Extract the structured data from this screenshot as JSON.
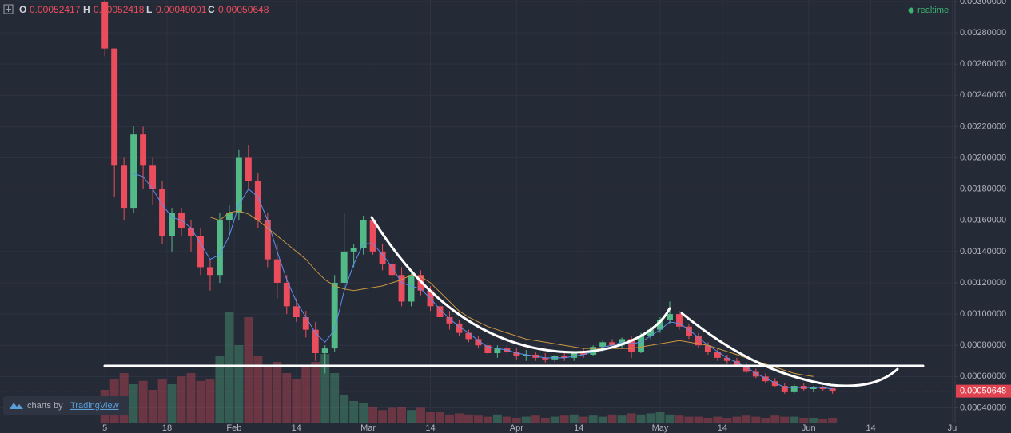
{
  "chart_data": {
    "type": "candlestick",
    "ohlc_labels": [
      "O",
      "H",
      "L",
      "C"
    ],
    "status": "realtime",
    "attribution": {
      "prefix": "charts by",
      "brand": "TradingView"
    },
    "up_color": "#53b987",
    "down_color": "#eb4d5c",
    "grid": true,
    "xlim": [
      -21.9,
      177.6
    ],
    "xticks": [
      {
        "value": 0,
        "label": "5"
      },
      {
        "value": 13,
        "label": "18"
      },
      {
        "value": 27,
        "label": "Feb"
      },
      {
        "value": 40,
        "label": "14"
      },
      {
        "value": 55,
        "label": "Mar"
      },
      {
        "value": 68,
        "label": "14"
      },
      {
        "value": 86,
        "label": "Apr"
      },
      {
        "value": 99,
        "label": "14"
      },
      {
        "value": 116,
        "label": "May"
      },
      {
        "value": 129,
        "label": "14"
      },
      {
        "value": 147,
        "label": "Jun"
      },
      {
        "value": 160,
        "label": "14"
      },
      {
        "value": 177,
        "label": "Ju"
      }
    ],
    "ylim": [
      0.0003,
      0.00301
    ],
    "yticks": [
      {
        "value": 0.0004,
        "label": "0.00040000"
      },
      {
        "value": 0.0006,
        "label": "0.00060000"
      },
      {
        "value": 0.0008,
        "label": "0.00080000"
      },
      {
        "value": 0.001,
        "label": "0.00100000"
      },
      {
        "value": 0.0012,
        "label": "0.00120000"
      },
      {
        "value": 0.0014,
        "label": "0.00140000"
      },
      {
        "value": 0.0016,
        "label": "0.00160000"
      },
      {
        "value": 0.0018,
        "label": "0.00180000"
      },
      {
        "value": 0.002,
        "label": "0.00200000"
      },
      {
        "value": 0.0022,
        "label": "0.00220000"
      },
      {
        "value": 0.0024,
        "label": "0.00240000"
      },
      {
        "value": 0.0026,
        "label": "0.00260000"
      },
      {
        "value": 0.0028,
        "label": "0.00280000"
      },
      {
        "value": 0.003,
        "label": "0.00300000"
      }
    ],
    "x": [
      0,
      2,
      4,
      6,
      8,
      10,
      12,
      14,
      16,
      18,
      20,
      22,
      24,
      26,
      28,
      30,
      32,
      34,
      36,
      38,
      40,
      42,
      44,
      46,
      48,
      50,
      52,
      54,
      56,
      58,
      60,
      62,
      64,
      66,
      68,
      70,
      72,
      74,
      76,
      78,
      80,
      82,
      84,
      86,
      88,
      90,
      92,
      94,
      96,
      98,
      100,
      102,
      104,
      106,
      108,
      110,
      112,
      114,
      116,
      118,
      120,
      122,
      124,
      126,
      128,
      130,
      132,
      134,
      136,
      138,
      140,
      142,
      144,
      146,
      148,
      150,
      152
    ],
    "open": [
      0.003,
      0.0027,
      0.00195,
      0.00168,
      0.00215,
      0.00195,
      0.0018,
      0.0015,
      0.00165,
      0.00155,
      0.0015,
      0.0013,
      0.00125,
      0.0016,
      0.00165,
      0.002,
      0.00185,
      0.0016,
      0.00135,
      0.0012,
      0.00105,
      0.00098,
      0.0009,
      0.00075,
      0.00078,
      0.0012,
      0.0014,
      0.00142,
      0.0016,
      0.0014,
      0.00132,
      0.00125,
      0.00108,
      0.00125,
      0.00115,
      0.00105,
      0.00098,
      0.00094,
      0.00088,
      0.00084,
      0.0008,
      0.00075,
      0.00078,
      0.00076,
      0.00073,
      0.00074,
      0.00072,
      0.00071,
      0.00073,
      0.00072,
      0.00075,
      0.00074,
      0.00079,
      0.00082,
      0.0008,
      0.00084,
      0.00076,
      0.00086,
      0.0009,
      0.00096,
      0.001,
      0.00092,
      0.00086,
      0.0008,
      0.00076,
      0.00072,
      0.0007,
      0.00067,
      0.00063,
      0.0006,
      0.00057,
      0.00054,
      0.0005,
      0.00054,
      0.00052,
      0.00053,
      0.00052417
    ],
    "high": [
      0.00301,
      0.0027,
      0.002,
      0.0022,
      0.0022,
      0.002,
      0.00185,
      0.00168,
      0.00168,
      0.0016,
      0.00155,
      0.00135,
      0.00165,
      0.0017,
      0.00205,
      0.00208,
      0.0019,
      0.00165,
      0.00145,
      0.00125,
      0.0011,
      0.00102,
      0.00095,
      0.0008,
      0.00125,
      0.00165,
      0.00145,
      0.00163,
      0.00162,
      0.00145,
      0.00138,
      0.0013,
      0.00128,
      0.00128,
      0.00118,
      0.00108,
      0.00102,
      0.00096,
      0.0009,
      0.00086,
      0.00082,
      0.0008,
      0.0008,
      0.00078,
      0.00077,
      0.00076,
      0.00075,
      0.00074,
      0.00075,
      0.00076,
      0.00078,
      0.0008,
      0.00083,
      0.00084,
      0.00085,
      0.00086,
      0.00088,
      0.00092,
      0.00098,
      0.00108,
      0.00102,
      0.00094,
      0.00088,
      0.00082,
      0.00078,
      0.00074,
      0.00072,
      0.00069,
      0.00065,
      0.00062,
      0.00059,
      0.00056,
      0.00055,
      0.00056,
      0.00054,
      0.00054,
      0.00052418
    ],
    "low": [
      0.00265,
      0.00175,
      0.0016,
      0.00165,
      0.0018,
      0.0017,
      0.00145,
      0.0014,
      0.0015,
      0.0014,
      0.00125,
      0.00115,
      0.0012,
      0.0015,
      0.0016,
      0.0018,
      0.00155,
      0.0013,
      0.0011,
      0.001,
      0.00095,
      0.00085,
      0.0007,
      0.00062,
      0.00076,
      0.00115,
      0.0013,
      0.00138,
      0.00138,
      0.00128,
      0.0012,
      0.00105,
      0.00105,
      0.00112,
      0.00102,
      0.00095,
      0.0009,
      0.00086,
      0.00082,
      0.00078,
      0.00073,
      0.00072,
      0.00074,
      0.00071,
      0.0007,
      0.0007,
      0.00069,
      0.00069,
      0.0007,
      0.0007,
      0.00072,
      0.00073,
      0.00076,
      0.00078,
      0.00078,
      0.00072,
      0.00075,
      0.00084,
      0.00088,
      0.00094,
      0.0009,
      0.00084,
      0.00078,
      0.00074,
      0.0007,
      0.00068,
      0.00066,
      0.00062,
      0.00059,
      0.00056,
      0.00053,
      0.00049,
      0.00049,
      0.00051,
      0.0005,
      0.00051,
      0.00049001
    ],
    "close": [
      0.0027,
      0.00195,
      0.00168,
      0.00215,
      0.00195,
      0.0018,
      0.0015,
      0.00165,
      0.00155,
      0.0015,
      0.0013,
      0.00125,
      0.0016,
      0.00165,
      0.002,
      0.00185,
      0.0016,
      0.00135,
      0.0012,
      0.00105,
      0.00098,
      0.0009,
      0.00075,
      0.00078,
      0.0012,
      0.0014,
      0.00142,
      0.0016,
      0.0014,
      0.00132,
      0.00125,
      0.00108,
      0.00125,
      0.00115,
      0.00105,
      0.00098,
      0.00094,
      0.00088,
      0.00084,
      0.0008,
      0.00075,
      0.00078,
      0.00076,
      0.00073,
      0.00074,
      0.00072,
      0.00071,
      0.00073,
      0.00072,
      0.00075,
      0.00074,
      0.00079,
      0.00082,
      0.0008,
      0.00084,
      0.00076,
      0.00086,
      0.0009,
      0.00096,
      0.001,
      0.00092,
      0.00086,
      0.0008,
      0.00076,
      0.00072,
      0.0007,
      0.00067,
      0.00063,
      0.0006,
      0.00057,
      0.00054,
      0.0005,
      0.00054,
      0.00052,
      0.00053,
      0.00052,
      0.00050648
    ],
    "vlim": [
      0,
      100
    ],
    "volume": [
      30,
      40,
      45,
      35,
      38,
      30,
      40,
      35,
      42,
      45,
      38,
      40,
      60,
      100,
      70,
      95,
      60,
      50,
      55,
      45,
      40,
      50,
      55,
      62,
      45,
      25,
      20,
      18,
      15,
      12,
      14,
      15,
      12,
      14,
      10,
      10,
      8,
      9,
      8,
      7,
      6,
      8,
      6,
      5,
      6,
      7,
      5,
      6,
      7,
      8,
      6,
      7,
      6,
      8,
      7,
      9,
      8,
      9,
      10,
      8,
      7,
      6,
      6,
      5,
      6,
      5,
      6,
      7,
      6,
      5,
      7,
      6,
      6,
      5,
      5,
      4,
      5
    ],
    "ma_fast": {
      "color": "#5b8ff0",
      "values": [
        null,
        null,
        null,
        0.0019,
        0.00188,
        0.0018,
        0.0017,
        0.00162,
        0.0016,
        0.00155,
        0.00145,
        0.00135,
        0.00138,
        0.0015,
        0.0017,
        0.0018,
        0.00175,
        0.0016,
        0.0014,
        0.00122,
        0.00108,
        0.00098,
        0.00088,
        0.00082,
        0.0009,
        0.00115,
        0.00132,
        0.00145,
        0.00145,
        0.00138,
        0.0013,
        0.0012,
        0.00118,
        0.00116,
        0.0011,
        0.00103,
        0.00097,
        0.00092,
        0.00088,
        0.00083,
        0.00079,
        0.00078,
        0.00077,
        0.00075,
        0.00074,
        0.00073,
        0.00072,
        0.00072,
        0.00072,
        0.00073,
        0.00074,
        0.00076,
        0.00079,
        0.0008,
        0.00082,
        0.00081,
        0.00082,
        0.00086,
        0.0009,
        0.00095,
        0.00094,
        0.0009,
        0.00085,
        0.0008,
        0.00076,
        0.00072,
        0.00069,
        0.00066,
        0.00062,
        0.00059,
        0.00056,
        0.00053,
        0.00053,
        0.00053,
        0.00053,
        0.00053,
        0.00052
      ]
    },
    "ma_slow": {
      "color": "#c9963f",
      "values": [
        null,
        null,
        null,
        null,
        null,
        null,
        null,
        null,
        null,
        null,
        null,
        0.00162,
        0.0016,
        0.00165,
        0.00166,
        0.00164,
        0.0016,
        0.00155,
        0.0015,
        0.00145,
        0.0014,
        0.00135,
        0.00128,
        0.00122,
        0.00118,
        0.00116,
        0.00115,
        0.00116,
        0.00117,
        0.00118,
        0.0012,
        0.00122,
        0.00125,
        0.00124,
        0.0012,
        0.00114,
        0.00108,
        0.00102,
        0.00098,
        0.00095,
        0.00092,
        0.0009,
        0.00088,
        0.00086,
        0.00084,
        0.00083,
        0.00082,
        0.00081,
        0.0008,
        0.00079,
        0.00078,
        0.00078,
        0.00078,
        0.00078,
        0.00078,
        0.00078,
        0.00079,
        0.0008,
        0.00081,
        0.00082,
        0.00083,
        0.00082,
        0.00081,
        0.0008,
        0.00078,
        0.00076,
        0.00074,
        0.00072,
        0.0007,
        0.00068,
        0.00066,
        0.00064,
        0.00062,
        0.00061,
        0.0006,
        null,
        null
      ]
    }
  }
}
